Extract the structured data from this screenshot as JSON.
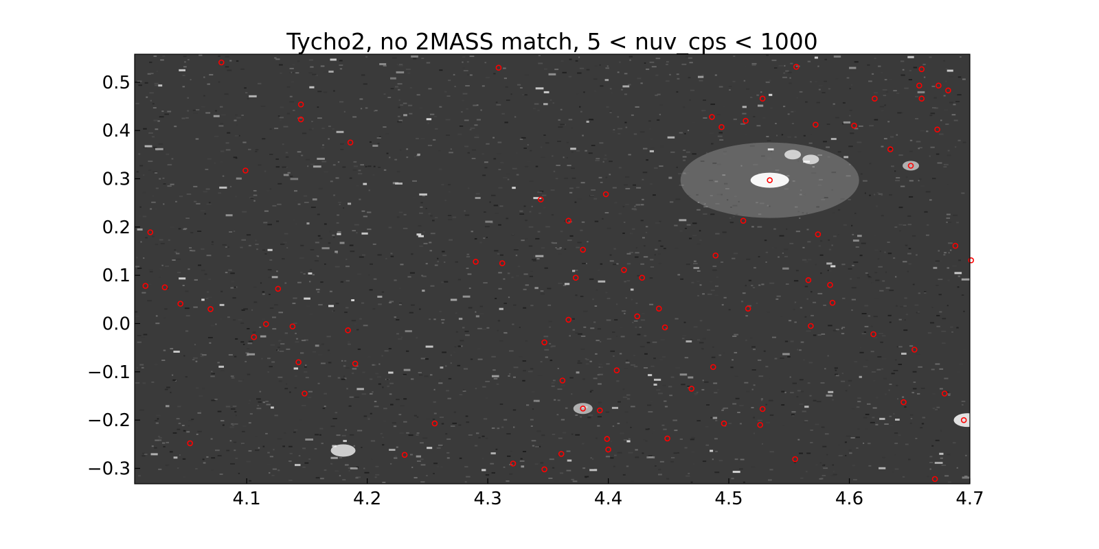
{
  "chart_data": {
    "type": "scatter",
    "title": "Tycho2, no 2MASS match, 5 < nuv_cps < 1000",
    "xlabel": "",
    "ylabel": "",
    "xlim": [
      4.007,
      4.7
    ],
    "ylim": [
      -0.332,
      0.558
    ],
    "x_ticks": [
      4.1,
      4.2,
      4.3,
      4.4,
      4.5,
      4.6,
      4.7
    ],
    "x_tick_labels": [
      "4.1",
      "4.2",
      "4.3",
      "4.4",
      "4.5",
      "4.6",
      "4.7"
    ],
    "y_ticks": [
      0.5,
      0.4,
      0.3,
      0.2,
      0.1,
      0.0,
      -0.1,
      -0.2,
      -0.3
    ],
    "y_tick_labels": [
      "0.5",
      "0.4",
      "0.3",
      "0.2",
      "0.1",
      "0.0",
      "−0.1",
      "−0.2",
      "−0.3"
    ],
    "grid": false,
    "background": "grayscale sky image",
    "marker": "open-circle",
    "marker_color": "#ff0000",
    "points": [
      [
        4.079,
        0.541
      ],
      [
        4.309,
        0.53
      ],
      [
        4.556,
        0.532
      ],
      [
        4.66,
        0.527
      ],
      [
        4.674,
        0.493
      ],
      [
        4.658,
        0.493
      ],
      [
        4.682,
        0.483
      ],
      [
        4.145,
        0.454
      ],
      [
        4.145,
        0.423
      ],
      [
        4.186,
        0.375
      ],
      [
        4.099,
        0.317
      ],
      [
        4.486,
        0.428
      ],
      [
        4.494,
        0.407
      ],
      [
        4.514,
        0.42
      ],
      [
        4.528,
        0.466
      ],
      [
        4.621,
        0.466
      ],
      [
        4.66,
        0.466
      ],
      [
        4.572,
        0.412
      ],
      [
        4.604,
        0.41
      ],
      [
        4.673,
        0.402
      ],
      [
        4.634,
        0.361
      ],
      [
        4.651,
        0.327
      ],
      [
        4.534,
        0.297
      ],
      [
        4.398,
        0.268
      ],
      [
        4.344,
        0.257
      ],
      [
        4.512,
        0.213
      ],
      [
        4.367,
        0.213
      ],
      [
        4.02,
        0.189
      ],
      [
        4.574,
        0.185
      ],
      [
        4.688,
        0.161
      ],
      [
        4.379,
        0.153
      ],
      [
        4.489,
        0.141
      ],
      [
        4.29,
        0.128
      ],
      [
        4.312,
        0.125
      ],
      [
        4.701,
        0.131
      ],
      [
        4.413,
        0.111
      ],
      [
        4.373,
        0.095
      ],
      [
        4.428,
        0.095
      ],
      [
        4.016,
        0.078
      ],
      [
        4.032,
        0.075
      ],
      [
        4.126,
        0.072
      ],
      [
        4.566,
        0.09
      ],
      [
        4.584,
        0.08
      ],
      [
        4.045,
        0.041
      ],
      [
        4.586,
        0.043
      ],
      [
        4.07,
        0.03
      ],
      [
        4.442,
        0.031
      ],
      [
        4.516,
        0.031
      ],
      [
        4.424,
        0.015
      ],
      [
        4.367,
        0.008
      ],
      [
        4.116,
        -0.001
      ],
      [
        4.138,
        -0.006
      ],
      [
        4.447,
        -0.008
      ],
      [
        4.568,
        -0.005
      ],
      [
        4.184,
        -0.014
      ],
      [
        4.106,
        -0.028
      ],
      [
        4.62,
        -0.022
      ],
      [
        4.347,
        -0.039
      ],
      [
        4.654,
        -0.054
      ],
      [
        4.143,
        -0.08
      ],
      [
        4.19,
        -0.083
      ],
      [
        4.487,
        -0.09
      ],
      [
        4.407,
        -0.097
      ],
      [
        4.362,
        -0.118
      ],
      [
        4.469,
        -0.135
      ],
      [
        4.148,
        -0.145
      ],
      [
        4.679,
        -0.145
      ],
      [
        4.645,
        -0.163
      ],
      [
        4.379,
        -0.176
      ],
      [
        4.393,
        -0.18
      ],
      [
        4.528,
        -0.177
      ],
      [
        4.695,
        -0.2
      ],
      [
        4.256,
        -0.207
      ],
      [
        4.496,
        -0.207
      ],
      [
        4.526,
        -0.21
      ],
      [
        4.399,
        -0.239
      ],
      [
        4.449,
        -0.238
      ],
      [
        4.053,
        -0.248
      ],
      [
        4.4,
        -0.261
      ],
      [
        4.231,
        -0.272
      ],
      [
        4.361,
        -0.27
      ],
      [
        4.555,
        -0.281
      ],
      [
        4.321,
        -0.29
      ],
      [
        4.347,
        -0.302
      ],
      [
        4.671,
        -0.322
      ]
    ]
  }
}
